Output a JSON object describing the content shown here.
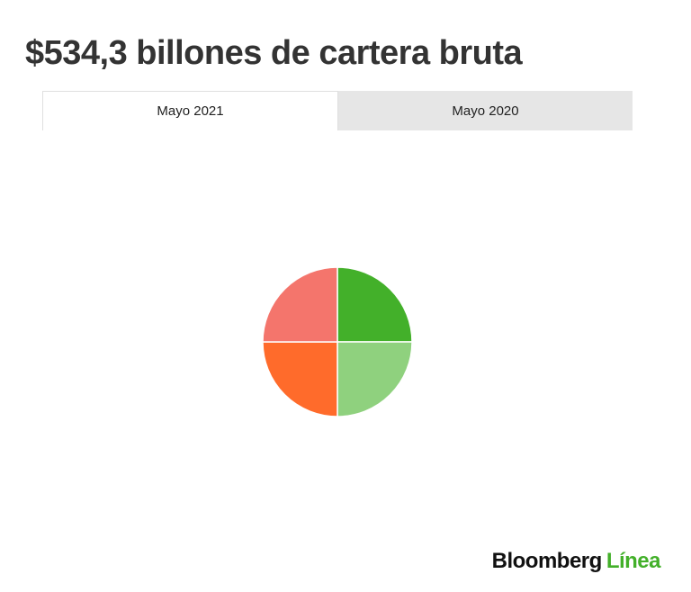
{
  "chart_data": {
    "type": "pie",
    "title": "$534,3 billones de cartera bruta",
    "categories": [
      null,
      null,
      null,
      null
    ],
    "values": [
      25,
      25,
      25,
      25
    ],
    "colors": [
      "#43b02a",
      "#8fd17e",
      "#ff6b2b",
      "#f4756c"
    ]
  },
  "tabs": [
    "Mayo 2021",
    "Mayo 2020"
  ],
  "logo": {
    "name": "Bloomberg",
    "suffix": "Línea"
  }
}
